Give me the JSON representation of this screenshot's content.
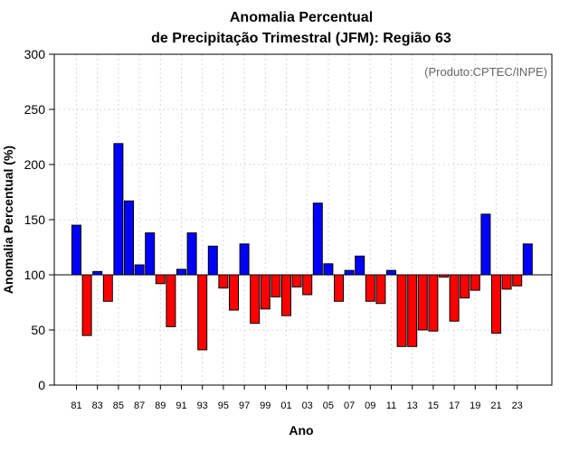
{
  "chart_data": {
    "type": "bar",
    "title": "Anomalia Percentual",
    "subtitle": "de Precipitação Trimestral (JFM): Região 63",
    "xlabel": "Ano",
    "ylabel": "Anomalia Percentual (%)",
    "credit": "(Produto:CPTEC/INPE)",
    "ylim": [
      0,
      300
    ],
    "yticks": [
      0,
      50,
      100,
      150,
      200,
      250,
      300
    ],
    "baseline": 100,
    "grid": true,
    "colors": {
      "above": "#0000ff",
      "below": "#ff0000"
    },
    "categories": [
      "81",
      "82",
      "83",
      "84",
      "85",
      "86",
      "87",
      "88",
      "89",
      "90",
      "91",
      "92",
      "93",
      "94",
      "95",
      "96",
      "97",
      "98",
      "99",
      "00",
      "01",
      "02",
      "03",
      "04",
      "05",
      "06",
      "07",
      "08",
      "09",
      "10",
      "11",
      "12",
      "13",
      "14",
      "15",
      "16",
      "17",
      "18",
      "19",
      "20",
      "21",
      "22",
      "23",
      "24"
    ],
    "xtick_labels": [
      "81",
      "83",
      "85",
      "87",
      "89",
      "91",
      "93",
      "95",
      "97",
      "99",
      "01",
      "03",
      "05",
      "07",
      "09",
      "11",
      "13",
      "15",
      "17",
      "19",
      "21",
      "23"
    ],
    "values": [
      145,
      45,
      103,
      76,
      219,
      167,
      109,
      138,
      92,
      53,
      105,
      138,
      32,
      126,
      88,
      68,
      128,
      56,
      69,
      80,
      63,
      89,
      82,
      165,
      110,
      76,
      104,
      117,
      76,
      74,
      104,
      35,
      35,
      50,
      49,
      98,
      58,
      79,
      86,
      155,
      47,
      87,
      90,
      128
    ]
  }
}
